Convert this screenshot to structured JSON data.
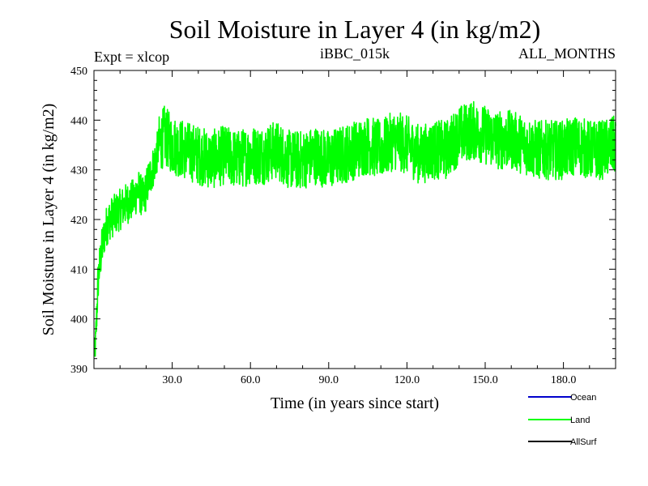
{
  "chart_data": {
    "type": "line",
    "title": "Soil Moisture in Layer 4 (in kg/m2)",
    "subtitle_left": "Expt = xlcop",
    "subtitle_center": "iBBC_015k",
    "subtitle_right": "ALL_MONTHS",
    "xlabel": "Time (in years since start)",
    "ylabel": "Soil Moisture in Layer 4 (in kg/m2)",
    "xlim": [
      0,
      200
    ],
    "ylim": [
      390,
      450
    ],
    "x_ticks": [
      30,
      60,
      90,
      120,
      150,
      180
    ],
    "x_tick_labels": [
      "30.0",
      "60.0",
      "90.0",
      "120.0",
      "150.0",
      "180.0"
    ],
    "y_ticks": [
      390,
      400,
      410,
      420,
      430,
      440,
      450
    ],
    "y_tick_labels": [
      "390",
      "400",
      "410",
      "420",
      "430",
      "440",
      "450"
    ],
    "legend": [
      {
        "name": "Ocean",
        "color": "#0000cc"
      },
      {
        "name": "Land",
        "color": "#00ff00"
      },
      {
        "name": "AllSurf",
        "color": "#000000"
      }
    ],
    "series": [
      {
        "name": "Land",
        "color": "#00ff00",
        "anchor_points": [
          [
            0,
            391
          ],
          [
            0.5,
            393
          ],
          [
            1,
            400
          ],
          [
            1.5,
            407
          ],
          [
            2,
            410
          ],
          [
            3,
            414
          ],
          [
            4,
            417
          ],
          [
            5,
            419
          ],
          [
            6,
            420
          ],
          [
            8,
            421
          ],
          [
            10,
            422
          ],
          [
            12,
            423
          ],
          [
            15,
            424
          ],
          [
            17,
            426
          ],
          [
            19,
            424
          ],
          [
            21,
            428
          ],
          [
            23,
            431
          ],
          [
            25,
            435
          ],
          [
            27,
            437
          ],
          [
            30,
            435
          ],
          [
            35,
            434
          ],
          [
            40,
            433
          ],
          [
            45,
            432
          ],
          [
            50,
            433
          ],
          [
            55,
            432
          ],
          [
            60,
            433
          ],
          [
            65,
            433
          ],
          [
            70,
            434
          ],
          [
            75,
            432
          ],
          [
            80,
            432
          ],
          [
            85,
            433
          ],
          [
            90,
            432
          ],
          [
            95,
            433
          ],
          [
            100,
            434
          ],
          [
            105,
            435
          ],
          [
            110,
            434
          ],
          [
            115,
            436
          ],
          [
            120,
            435
          ],
          [
            125,
            433
          ],
          [
            130,
            434
          ],
          [
            135,
            434
          ],
          [
            140,
            437
          ],
          [
            145,
            438
          ],
          [
            150,
            437
          ],
          [
            155,
            436
          ],
          [
            160,
            436
          ],
          [
            165,
            435
          ],
          [
            170,
            434
          ],
          [
            175,
            434
          ],
          [
            180,
            434
          ],
          [
            185,
            435
          ],
          [
            190,
            434
          ],
          [
            195,
            434
          ],
          [
            200,
            435
          ]
        ],
        "noise_amplitude": 6,
        "ymin_observed": 392.5,
        "ymax_observed": 445
      },
      {
        "name": "Ocean",
        "color": "#0000cc",
        "values": []
      },
      {
        "name": "AllSurf",
        "color": "#000000",
        "values": []
      }
    ]
  }
}
